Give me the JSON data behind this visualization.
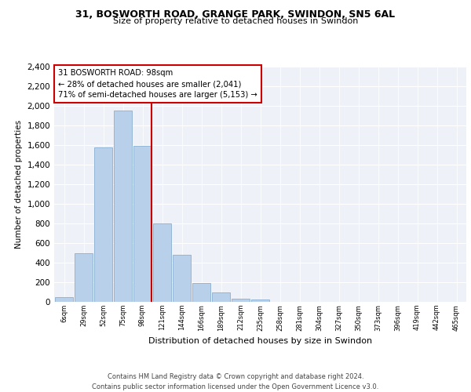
{
  "title1": "31, BOSWORTH ROAD, GRANGE PARK, SWINDON, SN5 6AL",
  "title2": "Size of property relative to detached houses in Swindon",
  "xlabel": "Distribution of detached houses by size in Swindon",
  "ylabel": "Number of detached properties",
  "footnote1": "Contains HM Land Registry data © Crown copyright and database right 2024.",
  "footnote2": "Contains public sector information licensed under the Open Government Licence v3.0.",
  "bar_labels": [
    "6sqm",
    "29sqm",
    "52sqm",
    "75sqm",
    "98sqm",
    "121sqm",
    "144sqm",
    "166sqm",
    "189sqm",
    "212sqm",
    "235sqm",
    "258sqm",
    "281sqm",
    "304sqm",
    "327sqm",
    "350sqm",
    "373sqm",
    "396sqm",
    "419sqm",
    "442sqm",
    "465sqm"
  ],
  "bar_values": [
    50,
    500,
    1580,
    1950,
    1590,
    800,
    480,
    195,
    95,
    30,
    25,
    0,
    0,
    0,
    0,
    0,
    0,
    0,
    0,
    0,
    0
  ],
  "property_bin_index": 4,
  "property_label": "31 BOSWORTH ROAD: 98sqm",
  "annotation_line1": "← 28% of detached houses are smaller (2,041)",
  "annotation_line2": "71% of semi-detached houses are larger (5,153) →",
  "bar_color": "#b8d0ea",
  "bar_edge_color": "#8ab0d0",
  "highlight_line_color": "#cc0000",
  "annotation_box_color": "#cc0000",
  "background_color": "#eef2f8",
  "ylim": [
    0,
    2400
  ],
  "yticks": [
    0,
    200,
    400,
    600,
    800,
    1000,
    1200,
    1400,
    1600,
    1800,
    2000,
    2200,
    2400
  ]
}
